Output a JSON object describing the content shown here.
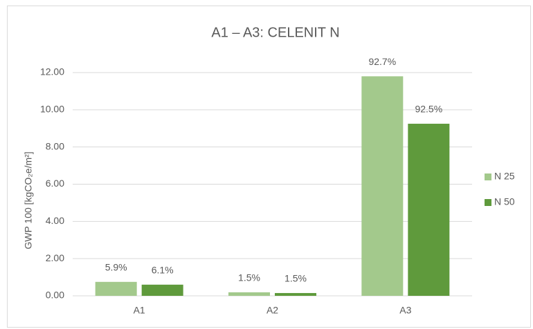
{
  "chart_data": {
    "type": "bar",
    "title": "A1 – A3: CELENIT N",
    "y_label": "GWP 100 [kgCO₂e/m²]",
    "categories": [
      "A1",
      "A2",
      "A3"
    ],
    "series": [
      {
        "name": "N 25",
        "color": "#a3c98c",
        "values": [
          0.75,
          0.19,
          11.8
        ],
        "labels": [
          "5.9%",
          "1.5%",
          "92.7%"
        ]
      },
      {
        "name": "N 50",
        "color": "#5f9a3c",
        "values": [
          0.6,
          0.15,
          9.25
        ],
        "labels": [
          "6.1%",
          "1.5%",
          "92.5%"
        ]
      }
    ],
    "ylim": [
      0,
      12
    ],
    "yticks": [
      {
        "value": 0,
        "label": "0.00"
      },
      {
        "value": 2,
        "label": "2.00"
      },
      {
        "value": 4,
        "label": "4.00"
      },
      {
        "value": 6,
        "label": "6.00"
      },
      {
        "value": 8,
        "label": "8.00"
      },
      {
        "value": 10,
        "label": "10.00"
      },
      {
        "value": 12,
        "label": "12.00"
      }
    ],
    "grid": true,
    "legend": "right"
  }
}
